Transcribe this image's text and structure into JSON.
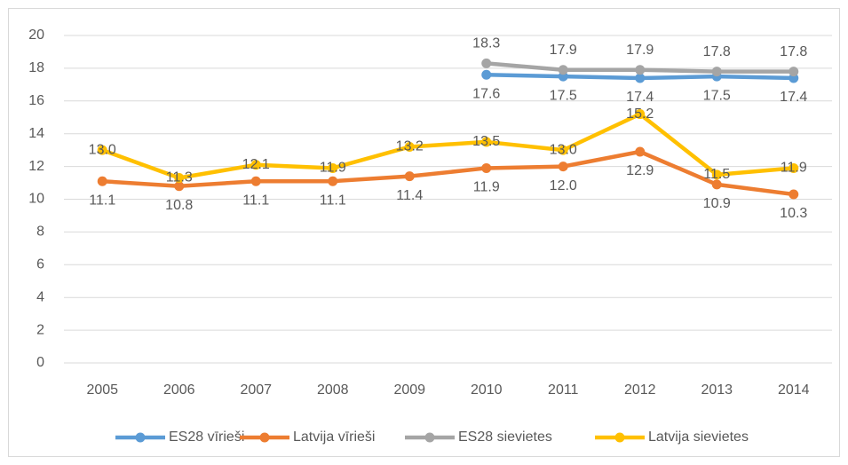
{
  "chart_data": {
    "type": "line",
    "categories": [
      "2005",
      "2006",
      "2007",
      "2008",
      "2009",
      "2010",
      "2011",
      "2012",
      "2013",
      "2014"
    ],
    "ylim": [
      0,
      20
    ],
    "yticks": [
      0,
      2,
      4,
      6,
      8,
      10,
      12,
      14,
      16,
      18,
      20
    ],
    "grid": true,
    "legend": "bottom",
    "series": [
      {
        "name": "ES28 vīrieši",
        "color": "#5b9bd5",
        "label_position": "below",
        "values": [
          null,
          null,
          null,
          null,
          null,
          17.6,
          17.5,
          17.4,
          17.5,
          17.4
        ],
        "value_labels": [
          null,
          null,
          null,
          null,
          null,
          "17.6",
          "17.5",
          "17.4",
          "17.5",
          "17.4"
        ]
      },
      {
        "name": "Latvija vīrieši",
        "color": "#ed7d31",
        "label_position": "below",
        "values": [
          11.1,
          10.8,
          11.1,
          11.1,
          11.4,
          11.9,
          12.0,
          12.9,
          10.9,
          10.3
        ],
        "value_labels": [
          "11.1",
          "10.8",
          "11.1",
          "11.1",
          "11.4",
          "11.9",
          "12.0",
          "12.9",
          "10.9",
          "10.3"
        ]
      },
      {
        "name": "ES28 sievietes",
        "color": "#a5a5a5",
        "label_position": "above",
        "values": [
          null,
          null,
          null,
          null,
          null,
          18.3,
          17.9,
          17.9,
          17.8,
          17.8
        ],
        "value_labels": [
          null,
          null,
          null,
          null,
          null,
          "18.3",
          "17.9",
          "17.9",
          "17.8",
          "17.8"
        ]
      },
      {
        "name": "Latvija sievietes",
        "color": "#ffc000",
        "label_position": "center",
        "values": [
          13.0,
          11.3,
          12.1,
          11.9,
          13.2,
          13.5,
          13.0,
          15.2,
          11.5,
          11.9
        ],
        "value_labels": [
          "13.0",
          "11.3",
          "12.1",
          "11.9",
          "13.2",
          "13.5",
          "13.0",
          "15.2",
          "11.5",
          "11.9"
        ]
      }
    ]
  }
}
